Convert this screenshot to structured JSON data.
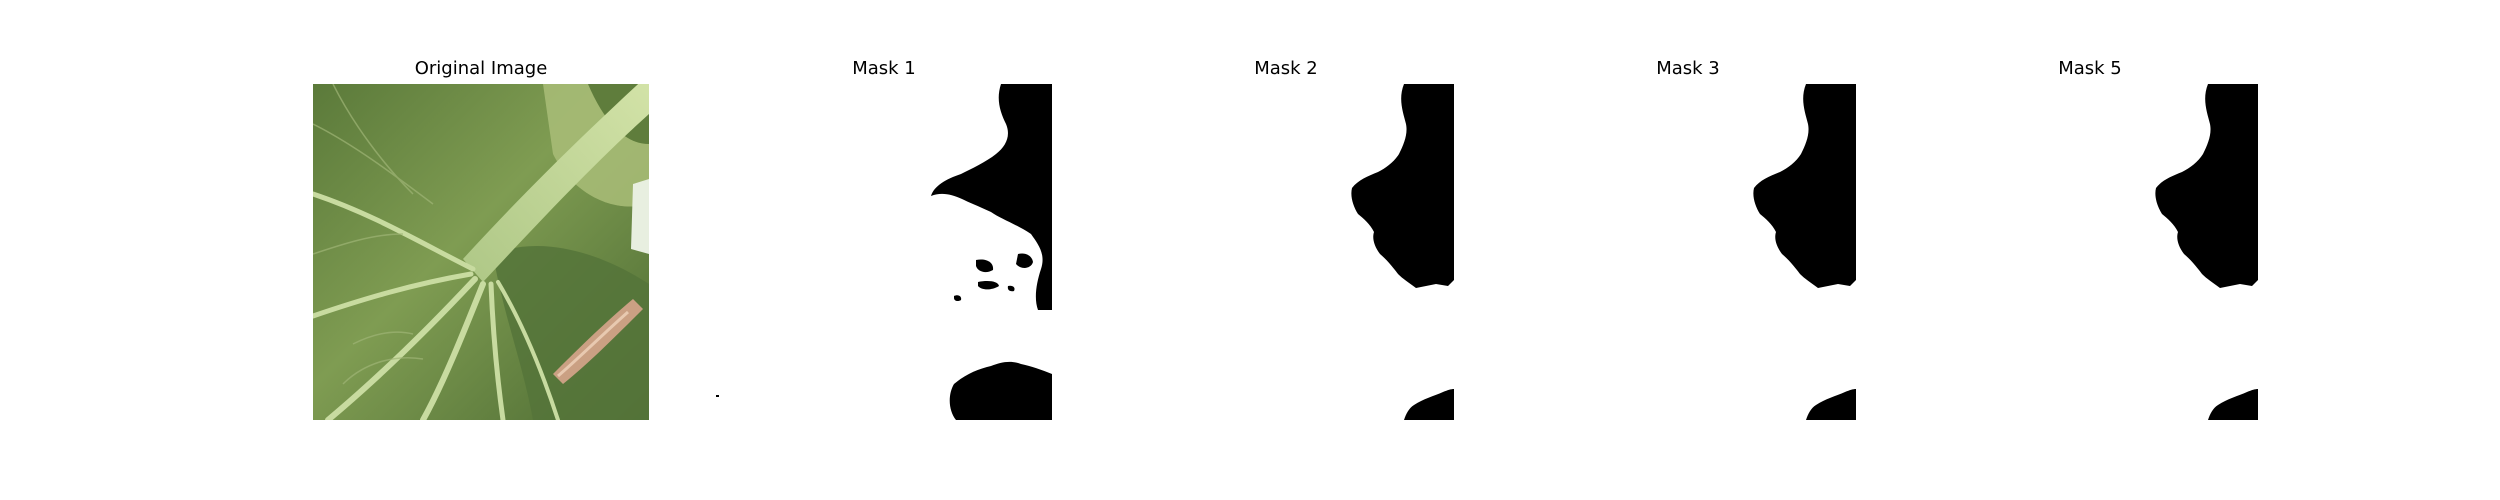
{
  "figure": {
    "panels": [
      {
        "title": "Original Image",
        "kind": "photo",
        "subject": "leaf-closeup"
      },
      {
        "title": "Mask 1",
        "kind": "mask"
      },
      {
        "title": "Mask 2",
        "kind": "mask"
      },
      {
        "title": "Mask 3",
        "kind": "mask"
      },
      {
        "title": "Mask 5",
        "kind": "mask"
      }
    ],
    "colors": {
      "background": "#ffffff",
      "mask_foreground": "#000000",
      "mask_background": "#ffffff",
      "leaf_dark": "#4f6e34",
      "leaf_mid": "#7e9a55",
      "stem": "#c3d79a"
    }
  }
}
